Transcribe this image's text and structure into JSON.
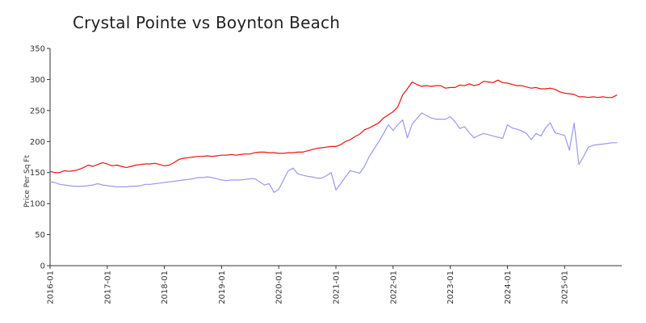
{
  "chart_data": {
    "type": "line",
    "title": "Crystal Pointe vs Boynton Beach",
    "xlabel": "",
    "ylabel": "Price Per Sq Ft",
    "ylim": [
      0,
      350
    ],
    "y_ticks": [
      0,
      50,
      100,
      150,
      200,
      250,
      300,
      350
    ],
    "x_range": [
      "2016-01",
      "2026-01"
    ],
    "x_ticks": [
      "2016-01",
      "2017-01",
      "2018-01",
      "2019-01",
      "2020-01",
      "2021-01",
      "2022-01",
      "2023-01",
      "2024-01",
      "2025-01"
    ],
    "grid": false,
    "legend": "none",
    "series": [
      {
        "color": "#ee1111",
        "points": [
          [
            "2016-01",
            152
          ],
          [
            "2016-02",
            150
          ],
          [
            "2016-03",
            150
          ],
          [
            "2016-04",
            153
          ],
          [
            "2016-05",
            152
          ],
          [
            "2016-06",
            153
          ],
          [
            "2016-07",
            155
          ],
          [
            "2016-08",
            158
          ],
          [
            "2016-09",
            162
          ],
          [
            "2016-10",
            160
          ],
          [
            "2016-11",
            163
          ],
          [
            "2016-12",
            166
          ],
          [
            "2017-01",
            164
          ],
          [
            "2017-02",
            161
          ],
          [
            "2017-03",
            162
          ],
          [
            "2017-04",
            160
          ],
          [
            "2017-05",
            158
          ],
          [
            "2017-06",
            160
          ],
          [
            "2017-07",
            162
          ],
          [
            "2017-08",
            163
          ],
          [
            "2017-09",
            164
          ],
          [
            "2017-10",
            164
          ],
          [
            "2017-11",
            165
          ],
          [
            "2017-12",
            163
          ],
          [
            "2018-01",
            161
          ],
          [
            "2018-02",
            162
          ],
          [
            "2018-03",
            166
          ],
          [
            "2018-04",
            171
          ],
          [
            "2018-05",
            173
          ],
          [
            "2018-06",
            174
          ],
          [
            "2018-07",
            175
          ],
          [
            "2018-08",
            176
          ],
          [
            "2018-09",
            176
          ],
          [
            "2018-10",
            177
          ],
          [
            "2018-11",
            176
          ],
          [
            "2018-12",
            177
          ],
          [
            "2019-01",
            178
          ],
          [
            "2019-02",
            178
          ],
          [
            "2019-03",
            179
          ],
          [
            "2019-04",
            178
          ],
          [
            "2019-05",
            179
          ],
          [
            "2019-06",
            180
          ],
          [
            "2019-07",
            180
          ],
          [
            "2019-08",
            182
          ],
          [
            "2019-09",
            183
          ],
          [
            "2019-10",
            183
          ],
          [
            "2019-11",
            182
          ],
          [
            "2019-12",
            182
          ],
          [
            "2020-01",
            181
          ],
          [
            "2020-02",
            181
          ],
          [
            "2020-03",
            182
          ],
          [
            "2020-04",
            182
          ],
          [
            "2020-05",
            183
          ],
          [
            "2020-06",
            183
          ],
          [
            "2020-07",
            185
          ],
          [
            "2020-08",
            187
          ],
          [
            "2020-09",
            189
          ],
          [
            "2020-10",
            190
          ],
          [
            "2020-11",
            191
          ],
          [
            "2020-12",
            192
          ],
          [
            "2021-01",
            192
          ],
          [
            "2021-02",
            195
          ],
          [
            "2021-03",
            200
          ],
          [
            "2021-04",
            203
          ],
          [
            "2021-05",
            208
          ],
          [
            "2021-06",
            212
          ],
          [
            "2021-07",
            219
          ],
          [
            "2021-08",
            222
          ],
          [
            "2021-09",
            226
          ],
          [
            "2021-10",
            230
          ],
          [
            "2021-11",
            238
          ],
          [
            "2021-12",
            243
          ],
          [
            "2022-01",
            248
          ],
          [
            "2022-02",
            256
          ],
          [
            "2022-03",
            275
          ],
          [
            "2022-04",
            285
          ],
          [
            "2022-05",
            296
          ],
          [
            "2022-06",
            292
          ],
          [
            "2022-07",
            289
          ],
          [
            "2022-08",
            290
          ],
          [
            "2022-09",
            289
          ],
          [
            "2022-10",
            290
          ],
          [
            "2022-11",
            290
          ],
          [
            "2022-12",
            286
          ],
          [
            "2023-01",
            287
          ],
          [
            "2023-02",
            287
          ],
          [
            "2023-03",
            291
          ],
          [
            "2023-04",
            290
          ],
          [
            "2023-05",
            293
          ],
          [
            "2023-06",
            290
          ],
          [
            "2023-07",
            292
          ],
          [
            "2023-08",
            297
          ],
          [
            "2023-09",
            296
          ],
          [
            "2023-10",
            295
          ],
          [
            "2023-11",
            299
          ],
          [
            "2023-12",
            295
          ],
          [
            "2024-01",
            294
          ],
          [
            "2024-02",
            292
          ],
          [
            "2024-03",
            290
          ],
          [
            "2024-04",
            290
          ],
          [
            "2024-05",
            288
          ],
          [
            "2024-06",
            286
          ],
          [
            "2024-07",
            287
          ],
          [
            "2024-08",
            285
          ],
          [
            "2024-09",
            285
          ],
          [
            "2024-10",
            286
          ],
          [
            "2024-11",
            284
          ],
          [
            "2024-12",
            280
          ],
          [
            "2025-01",
            278
          ],
          [
            "2025-02",
            277
          ],
          [
            "2025-03",
            276
          ],
          [
            "2025-04",
            272
          ],
          [
            "2025-05",
            272
          ],
          [
            "2025-06",
            271
          ],
          [
            "2025-07",
            272
          ],
          [
            "2025-08",
            271
          ],
          [
            "2025-09",
            272
          ],
          [
            "2025-10",
            271
          ],
          [
            "2025-11",
            271
          ],
          [
            "2025-12",
            275
          ]
        ]
      },
      {
        "color": "#9999ee",
        "points": [
          [
            "2016-01",
            135
          ],
          [
            "2016-02",
            134
          ],
          [
            "2016-03",
            131
          ],
          [
            "2016-04",
            130
          ],
          [
            "2016-05",
            129
          ],
          [
            "2016-06",
            128
          ],
          [
            "2016-07",
            128
          ],
          [
            "2016-08",
            128
          ],
          [
            "2016-09",
            129
          ],
          [
            "2016-10",
            130
          ],
          [
            "2016-11",
            132
          ],
          [
            "2016-12",
            130
          ],
          [
            "2017-01",
            129
          ],
          [
            "2017-02",
            128
          ],
          [
            "2017-03",
            127
          ],
          [
            "2017-04",
            127
          ],
          [
            "2017-05",
            127
          ],
          [
            "2017-06",
            128
          ],
          [
            "2017-07",
            128
          ],
          [
            "2017-08",
            129
          ],
          [
            "2017-09",
            131
          ],
          [
            "2017-10",
            131
          ],
          [
            "2017-11",
            132
          ],
          [
            "2017-12",
            133
          ],
          [
            "2018-01",
            134
          ],
          [
            "2018-02",
            135
          ],
          [
            "2018-03",
            136
          ],
          [
            "2018-04",
            137
          ],
          [
            "2018-05",
            138
          ],
          [
            "2018-06",
            139
          ],
          [
            "2018-07",
            140
          ],
          [
            "2018-08",
            142
          ],
          [
            "2018-09",
            142
          ],
          [
            "2018-10",
            143
          ],
          [
            "2018-11",
            142
          ],
          [
            "2018-12",
            140
          ],
          [
            "2019-01",
            138
          ],
          [
            "2019-02",
            137
          ],
          [
            "2019-03",
            138
          ],
          [
            "2019-04",
            138
          ],
          [
            "2019-05",
            138
          ],
          [
            "2019-06",
            139
          ],
          [
            "2019-07",
            140
          ],
          [
            "2019-08",
            140
          ],
          [
            "2019-09",
            135
          ],
          [
            "2019-10",
            130
          ],
          [
            "2019-11",
            132
          ],
          [
            "2019-12",
            118
          ],
          [
            "2020-01",
            123
          ],
          [
            "2020-02",
            138
          ],
          [
            "2020-03",
            153
          ],
          [
            "2020-04",
            157
          ],
          [
            "2020-05",
            148
          ],
          [
            "2020-06",
            146
          ],
          [
            "2020-07",
            144
          ],
          [
            "2020-08",
            143
          ],
          [
            "2020-09",
            141
          ],
          [
            "2020-10",
            141
          ],
          [
            "2020-11",
            145
          ],
          [
            "2020-12",
            150
          ],
          [
            "2021-01",
            122
          ],
          [
            "2021-02",
            132
          ],
          [
            "2021-03",
            143
          ],
          [
            "2021-04",
            153
          ],
          [
            "2021-05",
            151
          ],
          [
            "2021-06",
            149
          ],
          [
            "2021-07",
            160
          ],
          [
            "2021-08",
            176
          ],
          [
            "2021-09",
            188
          ],
          [
            "2021-10",
            200
          ],
          [
            "2021-11",
            213
          ],
          [
            "2021-12",
            227
          ],
          [
            "2022-01",
            218
          ],
          [
            "2022-02",
            227
          ],
          [
            "2022-03",
            235
          ],
          [
            "2022-04",
            206
          ],
          [
            "2022-05",
            228
          ],
          [
            "2022-06",
            237
          ],
          [
            "2022-07",
            246
          ],
          [
            "2022-08",
            242
          ],
          [
            "2022-09",
            238
          ],
          [
            "2022-10",
            236
          ],
          [
            "2022-11",
            236
          ],
          [
            "2022-12",
            236
          ],
          [
            "2023-01",
            240
          ],
          [
            "2023-02",
            232
          ],
          [
            "2023-03",
            221
          ],
          [
            "2023-04",
            224
          ],
          [
            "2023-05",
            214
          ],
          [
            "2023-06",
            206
          ],
          [
            "2023-07",
            210
          ],
          [
            "2023-08",
            213
          ],
          [
            "2023-09",
            211
          ],
          [
            "2023-10",
            209
          ],
          [
            "2023-11",
            207
          ],
          [
            "2023-12",
            205
          ],
          [
            "2024-01",
            227
          ],
          [
            "2024-02",
            222
          ],
          [
            "2024-03",
            220
          ],
          [
            "2024-04",
            217
          ],
          [
            "2024-05",
            213
          ],
          [
            "2024-06",
            203
          ],
          [
            "2024-07",
            213
          ],
          [
            "2024-08",
            209
          ],
          [
            "2024-09",
            222
          ],
          [
            "2024-10",
            230
          ],
          [
            "2024-11",
            214
          ],
          [
            "2024-12",
            212
          ],
          [
            "2025-01",
            210
          ],
          [
            "2025-02",
            186
          ],
          [
            "2025-03",
            230
          ],
          [
            "2025-04",
            163
          ],
          [
            "2025-05",
            176
          ],
          [
            "2025-06",
            191
          ],
          [
            "2025-07",
            194
          ],
          [
            "2025-08",
            195
          ],
          [
            "2025-09",
            196
          ],
          [
            "2025-10",
            197
          ],
          [
            "2025-11",
            198
          ],
          [
            "2025-12",
            198
          ]
        ]
      }
    ]
  }
}
